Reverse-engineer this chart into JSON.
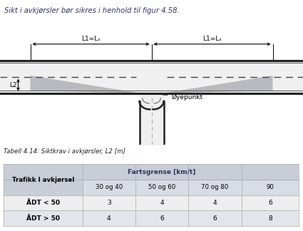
{
  "title_text": "Sikt i avkjørsler bør sikres i henhold til figur 4.58.",
  "caption": "Tabell 4.14: Siktkrav i avkjørsler, L2 [m]",
  "col0_header": "Trafikk I avkjørsel",
  "fartsgrense_header": "Fartsgrense [km/t]",
  "sub_headers": [
    "30 og 40",
    "50 og 60",
    "70 og 80",
    "90"
  ],
  "data_rows": [
    [
      "ÅDT < 50",
      "3",
      "4",
      "4",
      "6"
    ],
    [
      "ÅDT > 50",
      "4",
      "6",
      "6",
      "8"
    ]
  ],
  "title_bg": "#dde3ea",
  "diagram_bg": "#d8d8d8",
  "road_surface": "#c8c8c8",
  "road_edge": "#222222",
  "sight_fill": "#b0b0b8",
  "white_road": "#f0f0f0",
  "table_header_bg": "#c8cdd6",
  "table_subheader_bg": "#d8dce4",
  "table_row1_bg": "#eeeeee",
  "table_row2_bg": "#e2e5eb",
  "fartsgrense_color": "#333366",
  "L1Ls_label": "L1=Lₛ",
  "L2_label": "L2",
  "oyepunkt_label": "Øyepunkt"
}
